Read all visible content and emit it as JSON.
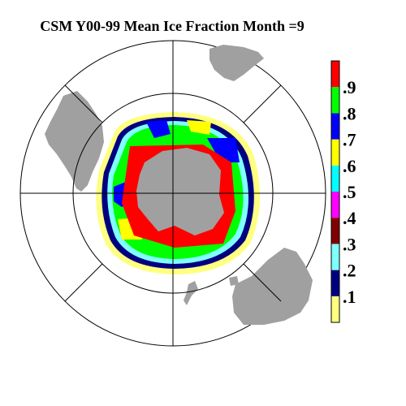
{
  "title": "CSM Y00-99 Mean Ice Fraction Month =9",
  "colorbar": {
    "colors": [
      "#ffff80",
      "#000080",
      "#80ffff",
      "#800000",
      "#ff00ff",
      "#00ffff",
      "#ffff00",
      "#0000ff",
      "#00ff00",
      "#ff0000"
    ],
    "labels": [
      ".1",
      ".2",
      ".3",
      ".4",
      ".5",
      ".6",
      ".7",
      ".8",
      ".9"
    ]
  }
}
